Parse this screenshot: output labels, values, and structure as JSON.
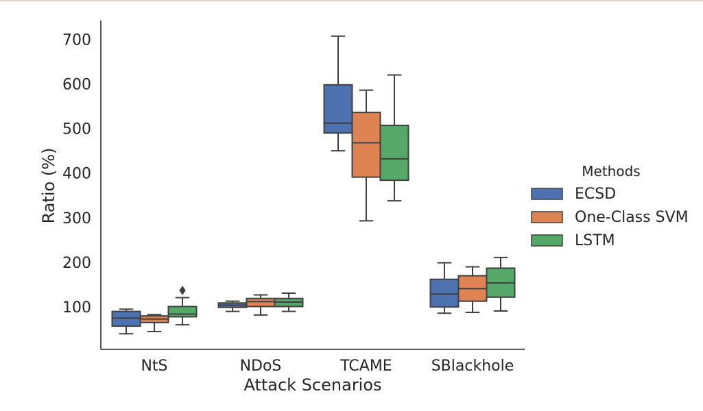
{
  "chart_data": {
    "type": "box",
    "xlabel": "Attack Scenarios",
    "ylabel": "Ratio (%)",
    "ylim": [
      5,
      742
    ],
    "yticks": [
      100,
      200,
      300,
      400,
      500,
      600,
      700
    ],
    "grid": false,
    "categories": [
      "NtS",
      "NDoS",
      "TCAME",
      "SBlackhole"
    ],
    "legend": {
      "title": "Methods",
      "placement": "right"
    },
    "series": [
      {
        "name": "ECSD",
        "color": "#4c72b0",
        "boxes": [
          {
            "whisker_low": 40,
            "q1": 57,
            "median": 75,
            "q3": 90,
            "whisker_high": 95,
            "outliers": []
          },
          {
            "whisker_low": 90,
            "q1": 99,
            "median": 104,
            "q3": 109,
            "whisker_high": 113,
            "outliers": []
          },
          {
            "whisker_low": 450,
            "q1": 490,
            "median": 512,
            "q3": 598,
            "whisker_high": 707,
            "outliers": []
          },
          {
            "whisker_low": 86,
            "q1": 100,
            "median": 129,
            "q3": 162,
            "whisker_high": 199,
            "outliers": []
          }
        ]
      },
      {
        "name": "One-Class SVM",
        "color": "#dd8452",
        "boxes": [
          {
            "whisker_low": 45,
            "q1": 65,
            "median": 73,
            "q3": 80,
            "whisker_high": 83,
            "outliers": []
          },
          {
            "whisker_low": 82,
            "q1": 101,
            "median": 112,
            "q3": 119,
            "whisker_high": 127,
            "outliers": []
          },
          {
            "whisker_low": 293,
            "q1": 391,
            "median": 468,
            "q3": 536,
            "whisker_high": 586,
            "outliers": []
          },
          {
            "whisker_low": 88,
            "q1": 113,
            "median": 141,
            "q3": 170,
            "whisker_high": 190,
            "outliers": []
          }
        ]
      },
      {
        "name": "LSTM",
        "color": "#55a868",
        "boxes": [
          {
            "whisker_low": 60,
            "q1": 78,
            "median": 84,
            "q3": 101,
            "whisker_high": 121,
            "outliers": [
              137
            ]
          },
          {
            "whisker_low": 90,
            "q1": 101,
            "median": 111,
            "q3": 119,
            "whisker_high": 131,
            "outliers": []
          },
          {
            "whisker_low": 338,
            "q1": 384,
            "median": 432,
            "q3": 507,
            "whisker_high": 620,
            "outliers": []
          },
          {
            "whisker_low": 91,
            "q1": 122,
            "median": 154,
            "q3": 187,
            "whisker_high": 211,
            "outliers": []
          }
        ]
      }
    ]
  }
}
